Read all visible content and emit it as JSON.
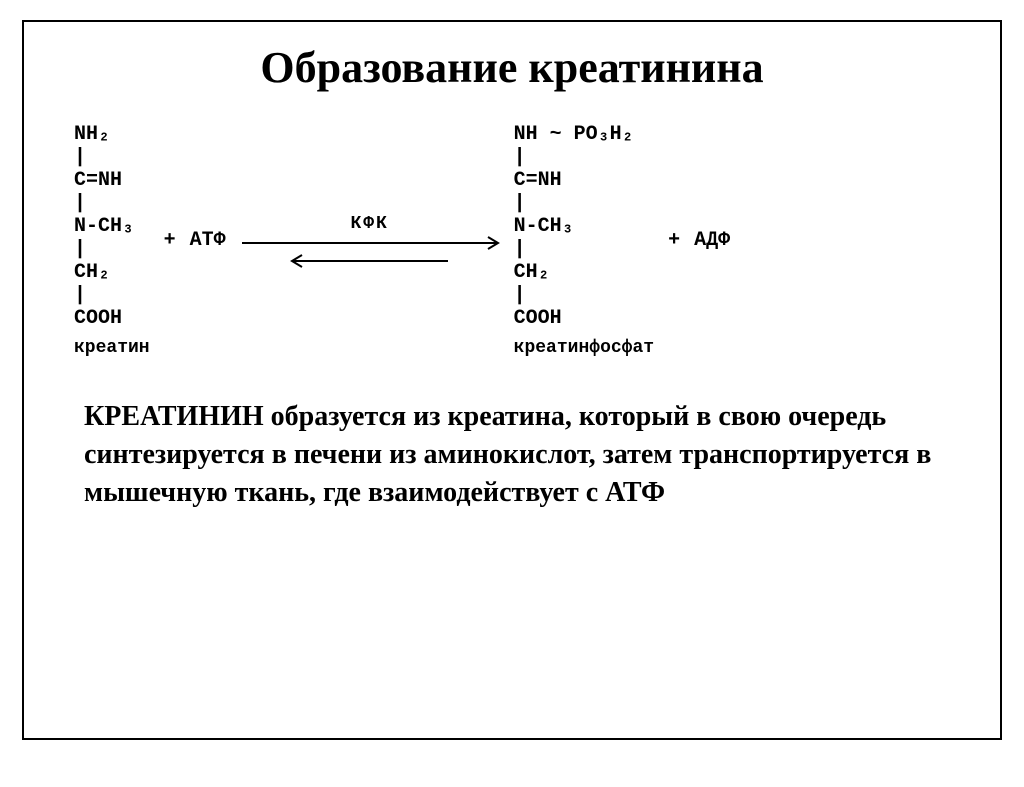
{
  "title": "Образование креатинина",
  "title_fontsize": 44,
  "reaction": {
    "font_family": "Courier New, monospace",
    "font_size_formula": 20,
    "font_size_label": 18,
    "left_molecule": {
      "lines": [
        "NH₂",
        "|",
        "C=NH",
        "|",
        "N-CH₃",
        "|",
        "CH₂",
        "|",
        "COOH"
      ],
      "label": "креатин"
    },
    "plus": "+",
    "left_term": "АТФ",
    "enzyme_label": "КФК",
    "arrow": {
      "forward_width": 260,
      "reverse_width": 160,
      "stroke": "#000000",
      "stroke_width": 2
    },
    "right_molecule": {
      "lines": [
        "NH ~ PO₃H₂",
        "|",
        "C=NH",
        "|",
        "N-CH₃",
        "|",
        "CH₂",
        "|",
        "COOH"
      ],
      "label": "креатинфосфат"
    },
    "right_term": "АДФ"
  },
  "paragraph": {
    "text": "КРЕАТИНИН образуется из креатина, который в свою очередь синтезируется в печени из аминокислот, затем транспортируется в мышечную ткань, где взаимодействует с АТФ",
    "fontsize": 28,
    "font_weight": "bold"
  },
  "colors": {
    "background": "#ffffff",
    "text": "#000000",
    "border": "#000000"
  }
}
